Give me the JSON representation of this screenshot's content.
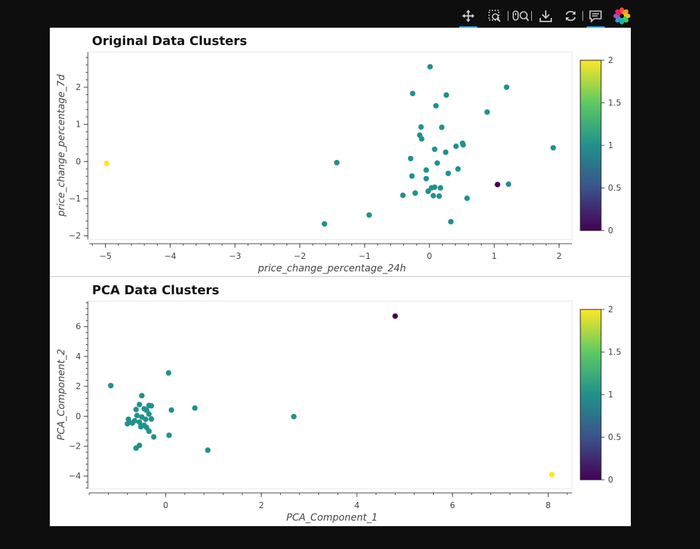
{
  "toolbar": {
    "tools": [
      {
        "name": "pan-tool-icon",
        "active": true
      },
      {
        "name": "box-zoom-tool-icon",
        "active": false
      },
      {
        "name": "wheel-zoom-tool-icon",
        "active": false
      },
      {
        "name": "save-tool-icon",
        "active": false
      },
      {
        "name": "reset-tool-icon",
        "active": false
      },
      {
        "name": "hover-tool-icon",
        "active": true
      },
      {
        "name": "bokeh-logo-icon",
        "active": false
      }
    ]
  },
  "colorbar": {
    "colormap": "viridis",
    "ticks": [
      "0",
      "0.5",
      "1",
      "1.5",
      "2"
    ],
    "range": [
      0,
      2
    ]
  },
  "cluster_colors": {
    "0": "#440154",
    "1": "#21918c",
    "2": "#fde725"
  },
  "chart_data": [
    {
      "type": "scatter",
      "title": "Original Data Clusters",
      "xlabel": "price_change_percentage_24h",
      "ylabel": "price_change_percentage_7d",
      "xlim": [
        -5.25,
        2.2
      ],
      "ylim": [
        -2.1,
        2.95
      ],
      "xticks": [
        -5,
        -4,
        -3,
        -2,
        -1,
        0,
        1,
        2
      ],
      "xtick_labels": [
        "−5",
        "−4",
        "−3",
        "−2",
        "−1",
        "0",
        "1",
        "2"
      ],
      "yticks": [
        -2,
        -1,
        0,
        1,
        2
      ],
      "ytick_labels": [
        "−2",
        "−1",
        "0",
        "1",
        "2"
      ],
      "points": [
        {
          "x": -4.98,
          "y": -0.05,
          "c": 2
        },
        {
          "x": 1.05,
          "y": -0.62,
          "c": 0
        },
        {
          "x": 0.01,
          "y": 2.55,
          "c": 1
        },
        {
          "x": -0.26,
          "y": 1.83,
          "c": 1
        },
        {
          "x": 0.26,
          "y": 1.79,
          "c": 1
        },
        {
          "x": 1.19,
          "y": 2.0,
          "c": 1
        },
        {
          "x": 0.1,
          "y": 1.5,
          "c": 1
        },
        {
          "x": 0.89,
          "y": 1.33,
          "c": 1
        },
        {
          "x": -0.13,
          "y": 0.93,
          "c": 1
        },
        {
          "x": 0.19,
          "y": 0.92,
          "c": 1
        },
        {
          "x": -0.15,
          "y": 0.71,
          "c": 1
        },
        {
          "x": -0.12,
          "y": 0.61,
          "c": 1
        },
        {
          "x": 0.08,
          "y": 0.33,
          "c": 1
        },
        {
          "x": 0.25,
          "y": 0.25,
          "c": 1
        },
        {
          "x": 0.51,
          "y": 0.49,
          "c": 1
        },
        {
          "x": 0.52,
          "y": 0.45,
          "c": 1
        },
        {
          "x": 0.41,
          "y": 0.41,
          "c": 1
        },
        {
          "x": 1.91,
          "y": 0.37,
          "c": 1
        },
        {
          "x": -0.29,
          "y": 0.08,
          "c": 1
        },
        {
          "x": 0.12,
          "y": -0.04,
          "c": 1
        },
        {
          "x": -1.43,
          "y": -0.03,
          "c": 1
        },
        {
          "x": -0.05,
          "y": -0.23,
          "c": 1
        },
        {
          "x": 0.44,
          "y": -0.2,
          "c": 1
        },
        {
          "x": 0.29,
          "y": -0.32,
          "c": 1
        },
        {
          "x": -0.27,
          "y": -0.39,
          "c": 1
        },
        {
          "x": -0.05,
          "y": -0.46,
          "c": 1
        },
        {
          "x": 1.22,
          "y": -0.61,
          "c": 1
        },
        {
          "x": 0.03,
          "y": -0.71,
          "c": 1
        },
        {
          "x": 0.08,
          "y": -0.69,
          "c": 1
        },
        {
          "x": 0.17,
          "y": -0.71,
          "c": 1
        },
        {
          "x": -0.02,
          "y": -0.8,
          "c": 1
        },
        {
          "x": -0.22,
          "y": -0.85,
          "c": 1
        },
        {
          "x": -0.41,
          "y": -0.91,
          "c": 1
        },
        {
          "x": 0.06,
          "y": -0.92,
          "c": 1
        },
        {
          "x": 0.15,
          "y": -0.93,
          "c": 1
        },
        {
          "x": 0.58,
          "y": -0.99,
          "c": 1
        },
        {
          "x": -0.93,
          "y": -1.44,
          "c": 1
        },
        {
          "x": 0.33,
          "y": -1.62,
          "c": 1
        },
        {
          "x": -1.62,
          "y": -1.68,
          "c": 1
        }
      ]
    },
    {
      "type": "scatter",
      "title": "PCA Data Clusters",
      "xlabel": "PCA_Component_1",
      "ylabel": "PCA_Component_2",
      "xlim": [
        -1.6,
        8.5
      ],
      "ylim": [
        -4.85,
        7.7
      ],
      "xticks": [
        0,
        2,
        4,
        6,
        8
      ],
      "xtick_labels": [
        "0",
        "2",
        "4",
        "6",
        "8"
      ],
      "yticks": [
        -4,
        -2,
        0,
        2,
        4,
        6
      ],
      "ytick_labels": [
        "−4",
        "−2",
        "0",
        "2",
        "4",
        "6"
      ],
      "points": [
        {
          "x": 4.8,
          "y": 6.7,
          "c": 0
        },
        {
          "x": 8.08,
          "y": -3.9,
          "c": 2
        },
        {
          "x": -1.15,
          "y": 2.05,
          "c": 1
        },
        {
          "x": 0.06,
          "y": 2.9,
          "c": 1
        },
        {
          "x": 0.12,
          "y": 0.42,
          "c": 1
        },
        {
          "x": 0.61,
          "y": 0.55,
          "c": 1
        },
        {
          "x": 2.68,
          "y": -0.02,
          "c": 1
        },
        {
          "x": 0.07,
          "y": -1.27,
          "c": 1
        },
        {
          "x": 0.88,
          "y": -2.27,
          "c": 1
        },
        {
          "x": -0.5,
          "y": 1.38,
          "c": 1
        },
        {
          "x": -0.55,
          "y": 0.78,
          "c": 1
        },
        {
          "x": -0.35,
          "y": 0.72,
          "c": 1
        },
        {
          "x": -0.3,
          "y": 0.7,
          "c": 1
        },
        {
          "x": -0.62,
          "y": 0.45,
          "c": 1
        },
        {
          "x": -0.45,
          "y": 0.5,
          "c": 1
        },
        {
          "x": -0.4,
          "y": 0.4,
          "c": 1
        },
        {
          "x": -0.6,
          "y": 0.05,
          "c": 1
        },
        {
          "x": -0.5,
          "y": -0.05,
          "c": 1
        },
        {
          "x": -0.35,
          "y": 0.15,
          "c": 1
        },
        {
          "x": -0.78,
          "y": -0.2,
          "c": 1
        },
        {
          "x": -0.65,
          "y": -0.3,
          "c": 1
        },
        {
          "x": -0.7,
          "y": -0.45,
          "c": 1
        },
        {
          "x": -0.8,
          "y": -0.5,
          "c": 1
        },
        {
          "x": -0.55,
          "y": -0.4,
          "c": 1
        },
        {
          "x": -0.42,
          "y": -0.2,
          "c": 1
        },
        {
          "x": -0.3,
          "y": -0.18,
          "c": 1
        },
        {
          "x": -0.45,
          "y": -0.6,
          "c": 1
        },
        {
          "x": -0.52,
          "y": -0.7,
          "c": 1
        },
        {
          "x": -0.4,
          "y": -0.75,
          "c": 1
        },
        {
          "x": -0.35,
          "y": -1.0,
          "c": 1
        },
        {
          "x": -0.25,
          "y": -1.38,
          "c": 1
        },
        {
          "x": -0.55,
          "y": -1.95,
          "c": 1
        },
        {
          "x": -0.62,
          "y": -2.13,
          "c": 1
        }
      ]
    }
  ]
}
